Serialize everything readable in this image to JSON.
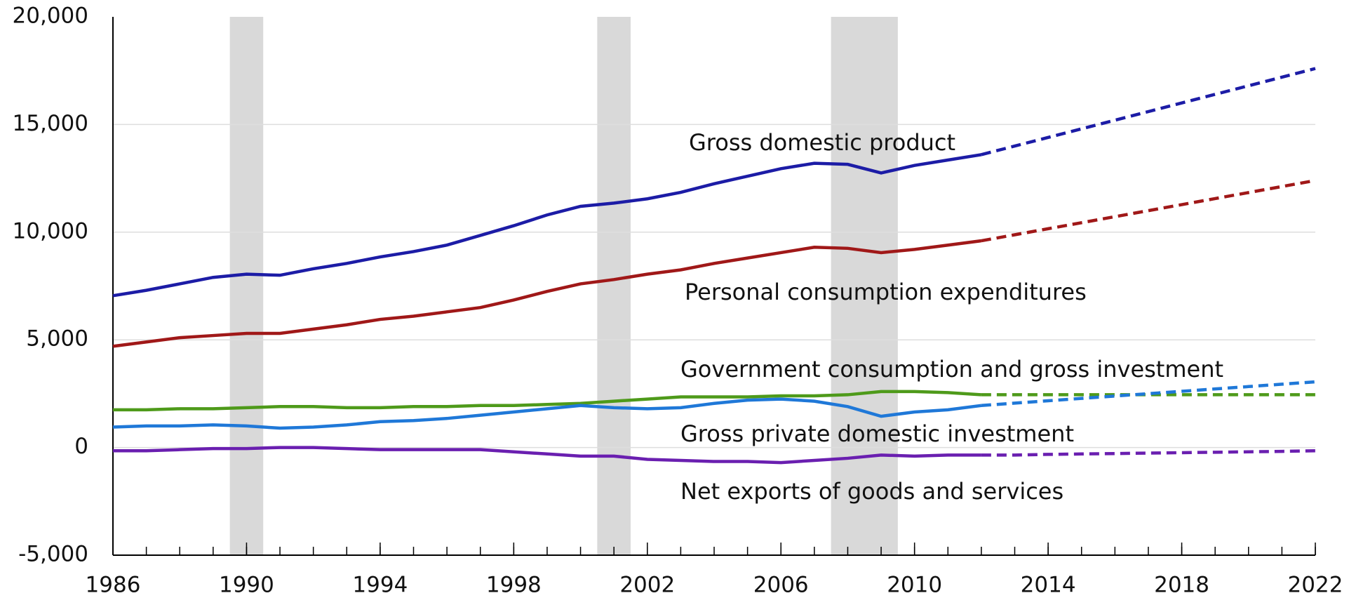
{
  "chart_data": {
    "type": "line",
    "x": [
      1986,
      1987,
      1988,
      1989,
      1990,
      1991,
      1992,
      1993,
      1994,
      1995,
      1996,
      1997,
      1998,
      1999,
      2000,
      2001,
      2002,
      2003,
      2004,
      2005,
      2006,
      2007,
      2008,
      2009,
      2010,
      2011,
      2012,
      2013,
      2014,
      2015,
      2016,
      2017,
      2018,
      2019,
      2020,
      2021,
      2022
    ],
    "projection_start": 2012,
    "shaded": [
      [
        1989.5,
        1990.5
      ],
      [
        2000.5,
        2001.5
      ],
      [
        2007.5,
        2009.5
      ]
    ],
    "series": [
      {
        "name": "Gross domestic product",
        "color": "#1c1ca6",
        "values": [
          7050,
          7300,
          7600,
          7900,
          8050,
          8000,
          8300,
          8550,
          8850,
          9100,
          9400,
          9850,
          10300,
          10800,
          11200,
          11350,
          11550,
          11850,
          12250,
          12600,
          12950,
          13200,
          13150,
          12750,
          13100,
          13350,
          13600,
          14000,
          14400,
          14800,
          15200,
          15600,
          16000,
          16400,
          16800,
          17200,
          17600
        ]
      },
      {
        "name": "Personal consumption expenditures",
        "color": "#a01818",
        "values": [
          4700,
          4900,
          5100,
          5200,
          5300,
          5300,
          5500,
          5700,
          5950,
          6100,
          6300,
          6500,
          6850,
          7250,
          7600,
          7800,
          8050,
          8250,
          8550,
          8800,
          9050,
          9300,
          9250,
          9050,
          9200,
          9400,
          9600,
          9880,
          10160,
          10440,
          10720,
          11000,
          11280,
          11560,
          11840,
          12120,
          12400
        ]
      },
      {
        "name": "Government consumption and gross investment",
        "color": "#4e9a1a",
        "values": [
          1750,
          1750,
          1800,
          1800,
          1850,
          1900,
          1900,
          1850,
          1850,
          1900,
          1900,
          1950,
          1950,
          2000,
          2050,
          2150,
          2250,
          2350,
          2350,
          2350,
          2400,
          2400,
          2450,
          2600,
          2600,
          2550,
          2450,
          2450,
          2450,
          2450,
          2450,
          2450,
          2450,
          2450,
          2450,
          2450,
          2450
        ]
      },
      {
        "name": "Gross private domestic investment",
        "color": "#1f78d8",
        "values": [
          950,
          1000,
          1000,
          1050,
          1000,
          900,
          950,
          1050,
          1200,
          1250,
          1350,
          1500,
          1650,
          1800,
          1950,
          1850,
          1800,
          1850,
          2050,
          2200,
          2250,
          2150,
          1900,
          1450,
          1650,
          1750,
          1950,
          2060,
          2170,
          2280,
          2390,
          2500,
          2610,
          2720,
          2830,
          2940,
          3050
        ]
      },
      {
        "name": "Net exports of goods and services",
        "color": "#6a1fb0",
        "values": [
          -150,
          -150,
          -100,
          -50,
          -50,
          0,
          0,
          -50,
          -100,
          -100,
          -100,
          -100,
          -200,
          -300,
          -400,
          -400,
          -550,
          -600,
          -650,
          -650,
          -700,
          -600,
          -500,
          -350,
          -400,
          -350,
          -350,
          -350,
          -320,
          -300,
          -280,
          -260,
          -240,
          -220,
          -200,
          -180,
          -150
        ]
      }
    ],
    "xlim": [
      1986,
      2022
    ],
    "xticks": [
      1986,
      1990,
      1994,
      1998,
      2002,
      2006,
      2010,
      2014,
      2018,
      2022
    ],
    "ylim": [
      -5000,
      20000
    ],
    "yticks": [
      {
        "value": -5000,
        "label": "-5,000"
      },
      0,
      {
        "value": 5000,
        "label": "5,000"
      },
      {
        "value": 10000,
        "label": "10,000"
      },
      {
        "value": 15000,
        "label": "15,000"
      },
      {
        "value": 20000,
        "label": "20,000"
      }
    ],
    "grid": true
  }
}
